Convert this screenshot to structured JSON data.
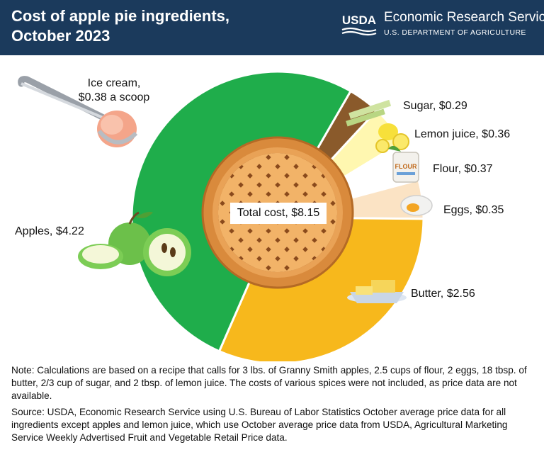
{
  "header": {
    "title": "Cost of apple pie ingredients, October 2023",
    "org_logo": "USDA",
    "org_name": "Economic Research Service",
    "org_dept": "U.S. DEPARTMENT OF AGRICULTURE",
    "colors": {
      "bar": "#1b3a5c",
      "text": "#ffffff"
    }
  },
  "chart_data": {
    "type": "pie",
    "center_label": "Total cost, $8.15",
    "slices": [
      {
        "name": "Apples",
        "label": "Apples, $4.22",
        "value": 4.22,
        "color": "#1fad4b"
      },
      {
        "name": "Sugar",
        "label": "Sugar, $0.29",
        "value": 0.29,
        "color": "#8a5a2b"
      },
      {
        "name": "Lemon juice",
        "label": "Lemon juice, $0.36",
        "value": 0.36,
        "color": "#fff7b0"
      },
      {
        "name": "Flour",
        "label": "Flour, $0.37",
        "value": 0.37,
        "color": "#ffffff"
      },
      {
        "name": "Eggs",
        "label": "Eggs, $0.35",
        "value": 0.35,
        "color": "#fbe3c4"
      },
      {
        "name": "Butter",
        "label": "Butter, $2.56",
        "value": 2.56,
        "color": "#f7b81c"
      }
    ],
    "extra": {
      "label": "Ice cream,\n$0.38 a scoop",
      "value": 0.38
    }
  },
  "notes": {
    "note": "Note: Calculations are based on a recipe that calls for 3 lbs. of Granny Smith apples, 2.5 cups of flour, 2 eggs, 18 tbsp. of butter, 2/3 cup of sugar, and 2 tbsp. of lemon juice. The costs of various spices were not included, as price data are not available.",
    "source": "Source: USDA, Economic Research Service using U.S. Bureau of Labor Statistics October average price data for all ingredients except apples and lemon juice, which use October average price data from USDA, Agricultural Marketing Service Weekly Advertised Fruit and Vegetable Retail Price data."
  }
}
